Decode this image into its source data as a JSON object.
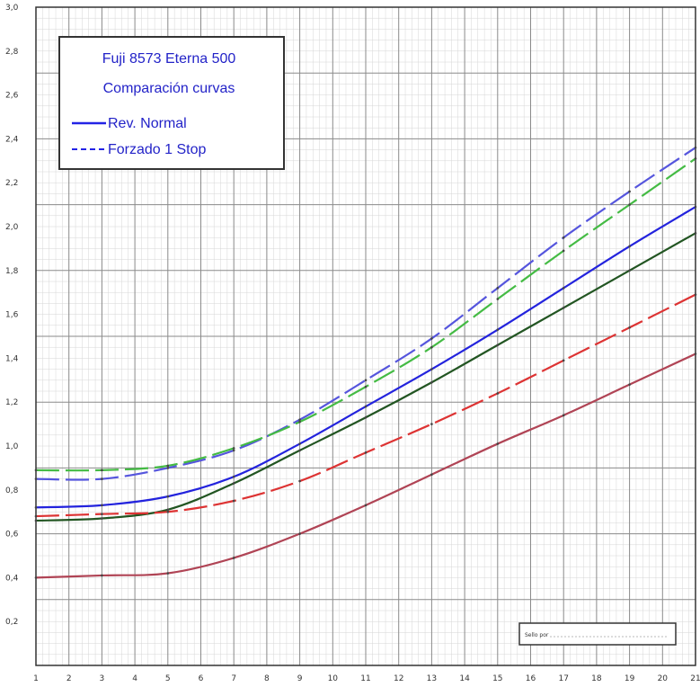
{
  "chart_data": {
    "type": "line",
    "title": [
      "Fuji 8573 Eterna 500",
      "Comparación curvas"
    ],
    "legend": [
      {
        "label": "Rev. Normal",
        "style": "solid",
        "color": "#2323e6"
      },
      {
        "label": "Forzado 1 Stop",
        "style": "dashed",
        "color": "#2323e6"
      }
    ],
    "legend_position": "top-left",
    "grid": true,
    "xlim": [
      1,
      21
    ],
    "ylim": [
      0.0,
      3.0
    ],
    "x_ticks": [
      1,
      2,
      3,
      4,
      5,
      6,
      7,
      8,
      9,
      10,
      11,
      12,
      13,
      14,
      15,
      16,
      17,
      18,
      19,
      20,
      21
    ],
    "x_tick_labels": [
      "1",
      "2",
      "3",
      "4",
      "5",
      "6",
      "7",
      "8",
      "9",
      "10",
      "11",
      "12",
      "13",
      "14",
      "15",
      "16",
      "17",
      "18",
      "19",
      "20",
      "21"
    ],
    "y_ticks": [
      0.2,
      0.4,
      0.6,
      0.8,
      1.0,
      1.2,
      1.4,
      1.6,
      1.8,
      2.0,
      2.2,
      2.4,
      2.6,
      2.8,
      3.0
    ],
    "y_tick_labels": [
      "0,2",
      "0,4",
      "0,6",
      "0,8",
      "1,0",
      "1,2",
      "1,4",
      "1,6",
      "1,8",
      "2,0",
      "2,2",
      "2,4",
      "2,6",
      "2,8",
      "3,0"
    ],
    "series": [
      {
        "style": "dashed",
        "color": "#5555dd",
        "x": [
          1,
          3,
          5,
          7,
          9,
          11,
          13,
          15,
          17,
          19,
          21
        ],
        "y": [
          0.85,
          0.85,
          0.9,
          0.98,
          1.12,
          1.3,
          1.49,
          1.72,
          1.95,
          2.16,
          2.36
        ]
      },
      {
        "style": "dashed",
        "color": "#44bb44",
        "x": [
          1,
          3,
          5,
          7,
          9,
          11,
          13,
          15,
          17,
          19,
          21
        ],
        "y": [
          0.89,
          0.89,
          0.91,
          0.99,
          1.11,
          1.27,
          1.45,
          1.67,
          1.89,
          2.1,
          2.31
        ]
      },
      {
        "style": "solid",
        "color": "#2323dd",
        "x": [
          1,
          3,
          5,
          7,
          9,
          11,
          13,
          15,
          17,
          19,
          21
        ],
        "y": [
          0.72,
          0.73,
          0.77,
          0.86,
          1.01,
          1.18,
          1.35,
          1.53,
          1.72,
          1.91,
          2.09
        ]
      },
      {
        "style": "solid",
        "color": "#225522",
        "x": [
          1,
          3,
          5,
          7,
          9,
          11,
          13,
          15,
          17,
          19,
          21
        ],
        "y": [
          0.66,
          0.67,
          0.71,
          0.83,
          0.98,
          1.13,
          1.29,
          1.46,
          1.63,
          1.8,
          1.97
        ]
      },
      {
        "style": "dashed",
        "color": "#dd3333",
        "x": [
          1,
          3,
          5,
          7,
          9,
          11,
          13,
          15,
          17,
          19,
          21
        ],
        "y": [
          0.68,
          0.69,
          0.7,
          0.75,
          0.84,
          0.97,
          1.1,
          1.24,
          1.39,
          1.54,
          1.69
        ]
      },
      {
        "style": "solid",
        "color": "#b04455",
        "x": [
          1,
          3,
          5,
          7,
          9,
          11,
          13,
          15,
          17,
          19,
          21
        ],
        "y": [
          0.4,
          0.41,
          0.42,
          0.49,
          0.6,
          0.73,
          0.87,
          1.01,
          1.14,
          1.28,
          1.42
        ]
      }
    ],
    "stamp": "Sello por"
  }
}
